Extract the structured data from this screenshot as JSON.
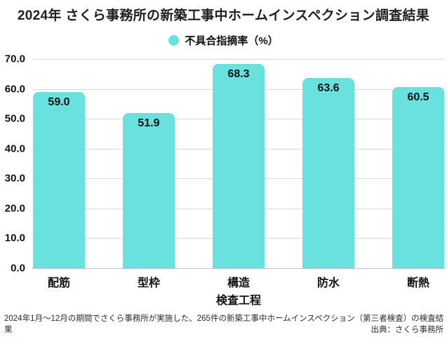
{
  "title": "2024年 さくら事務所の新築工事中ホームインスペクション調査結果",
  "legend": {
    "label": "不具合指摘率（%）"
  },
  "chart_data": {
    "type": "bar",
    "title": "2024年 さくら事務所の新築工事中ホームインスペクション調査結果",
    "series_name": "不具合指摘率（%）",
    "categories": [
      "配筋",
      "型枠",
      "構造",
      "防水",
      "断熱"
    ],
    "values": [
      59.0,
      51.9,
      68.3,
      63.6,
      60.5
    ],
    "value_labels": [
      "59.0",
      "51.9",
      "68.3",
      "63.6",
      "60.5"
    ],
    "xlabel": "検査工程",
    "ylabel": "",
    "ylim": [
      0,
      70
    ],
    "ytick_step": 10,
    "yticks_top_to_bottom": [
      "70.0",
      "60.0",
      "50.0",
      "40.0",
      "30.0",
      "20.0",
      "10.0",
      "0.0"
    ],
    "grid": true,
    "legend_position": "top-center"
  },
  "footer": {
    "note": "2024年1月～12月の期間でさくら事務所が実施した、265件の新築工事中ホームインスペクション（第三者検査）の検査結果",
    "source": "出典：さくら事務所"
  },
  "colors": {
    "bar": "#69e2df",
    "grid": "#d9d9d9",
    "baseline": "#bdbdbd",
    "text": "#111111"
  }
}
